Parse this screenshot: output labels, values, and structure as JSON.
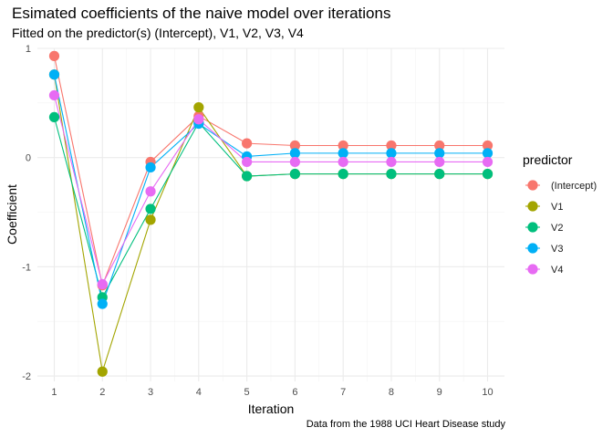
{
  "chart_data": {
    "type": "line",
    "title": "Esimated coefficients of the naive model over iterations",
    "subtitle": "Fitted on the predictor(s) (Intercept), V1, V2, V3, V4",
    "caption": "Data from the 1988 UCI Heart Disease study",
    "xlabel": "Iteration",
    "ylabel": "Coefficient",
    "x": [
      1,
      2,
      3,
      4,
      5,
      6,
      7,
      8,
      9,
      10
    ],
    "xlim": [
      0.65,
      10.35
    ],
    "ylim": [
      -2.05,
      1.0
    ],
    "x_ticks": [
      1,
      2,
      3,
      4,
      5,
      6,
      7,
      8,
      9,
      10
    ],
    "y_ticks": [
      -2,
      -1,
      0,
      1
    ],
    "grid": true,
    "legend_title": "predictor",
    "legend_position": "right",
    "series": [
      {
        "name": "(Intercept)",
        "color": "#F8766D",
        "values": [
          0.93,
          -1.17,
          -0.04,
          0.38,
          0.13,
          0.11,
          0.11,
          0.11,
          0.11,
          0.11
        ]
      },
      {
        "name": "V1",
        "color": "#A3A500",
        "values": [
          0.76,
          -1.96,
          -0.57,
          0.46,
          -0.17,
          -0.15,
          -0.15,
          -0.15,
          -0.15,
          -0.15
        ]
      },
      {
        "name": "V2",
        "color": "#00BF7D",
        "values": [
          0.37,
          -1.28,
          -0.47,
          0.32,
          -0.17,
          -0.15,
          -0.15,
          -0.15,
          -0.15,
          -0.15
        ]
      },
      {
        "name": "V3",
        "color": "#00B0F6",
        "values": [
          0.76,
          -1.34,
          -0.09,
          0.31,
          0.01,
          0.04,
          0.04,
          0.04,
          0.04,
          0.04
        ]
      },
      {
        "name": "V4",
        "color": "#E76BF3",
        "values": [
          0.57,
          -1.16,
          -0.31,
          0.35,
          -0.04,
          -0.04,
          -0.04,
          -0.04,
          -0.04,
          -0.04
        ]
      }
    ]
  }
}
